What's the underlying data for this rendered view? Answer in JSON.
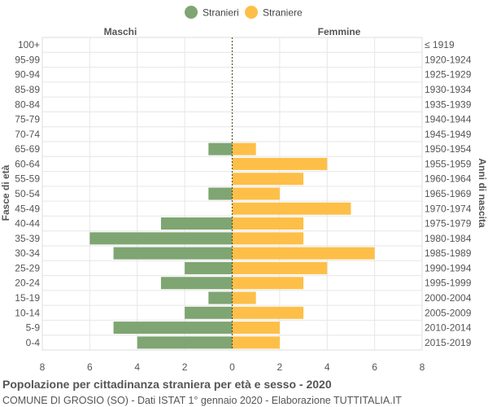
{
  "chart_data": {
    "type": "bar",
    "orientation": "horizontal-population-pyramid",
    "title": "Popolazione per cittadinanza straniera per età e sesso - 2020",
    "subtitle": "COMUNE DI GROSIO (SO) - Dati ISTAT 1° gennaio 2020 - Elaborazione TUTTITALIA.IT",
    "left_label": "Maschi",
    "right_label": "Femmine",
    "ylabel_left": "Fasce di età",
    "ylabel_right": "Anni di nascita",
    "xlim": [
      -8,
      8
    ],
    "xticks": [
      8,
      6,
      4,
      2,
      0,
      2,
      4,
      6,
      8
    ],
    "grid": true,
    "legend_position": "top-center",
    "colors": {
      "male": "#7fa572",
      "female": "#fdbf48"
    },
    "categories": [
      "100+",
      "95-99",
      "90-94",
      "85-89",
      "80-84",
      "75-79",
      "70-74",
      "65-69",
      "60-64",
      "55-59",
      "50-54",
      "45-49",
      "40-44",
      "35-39",
      "30-34",
      "25-29",
      "20-24",
      "15-19",
      "10-14",
      "5-9",
      "0-4"
    ],
    "birth_years": [
      "≤ 1919",
      "1920-1924",
      "1925-1929",
      "1930-1934",
      "1935-1939",
      "1940-1944",
      "1945-1949",
      "1950-1954",
      "1955-1959",
      "1960-1964",
      "1965-1969",
      "1970-1974",
      "1975-1979",
      "1980-1984",
      "1985-1989",
      "1990-1994",
      "1995-1999",
      "2000-2004",
      "2005-2009",
      "2010-2014",
      "2015-2019"
    ],
    "series": [
      {
        "name": "Stranieri",
        "side": "left",
        "values": [
          0,
          0,
          0,
          0,
          0,
          0,
          0,
          1,
          0,
          0,
          1,
          0,
          3,
          6,
          5,
          2,
          3,
          1,
          2,
          5,
          4
        ]
      },
      {
        "name": "Straniere",
        "side": "right",
        "values": [
          0,
          0,
          0,
          0,
          0,
          0,
          0,
          1,
          4,
          3,
          2,
          5,
          3,
          3,
          6,
          4,
          3,
          1,
          3,
          2,
          2
        ]
      }
    ]
  }
}
